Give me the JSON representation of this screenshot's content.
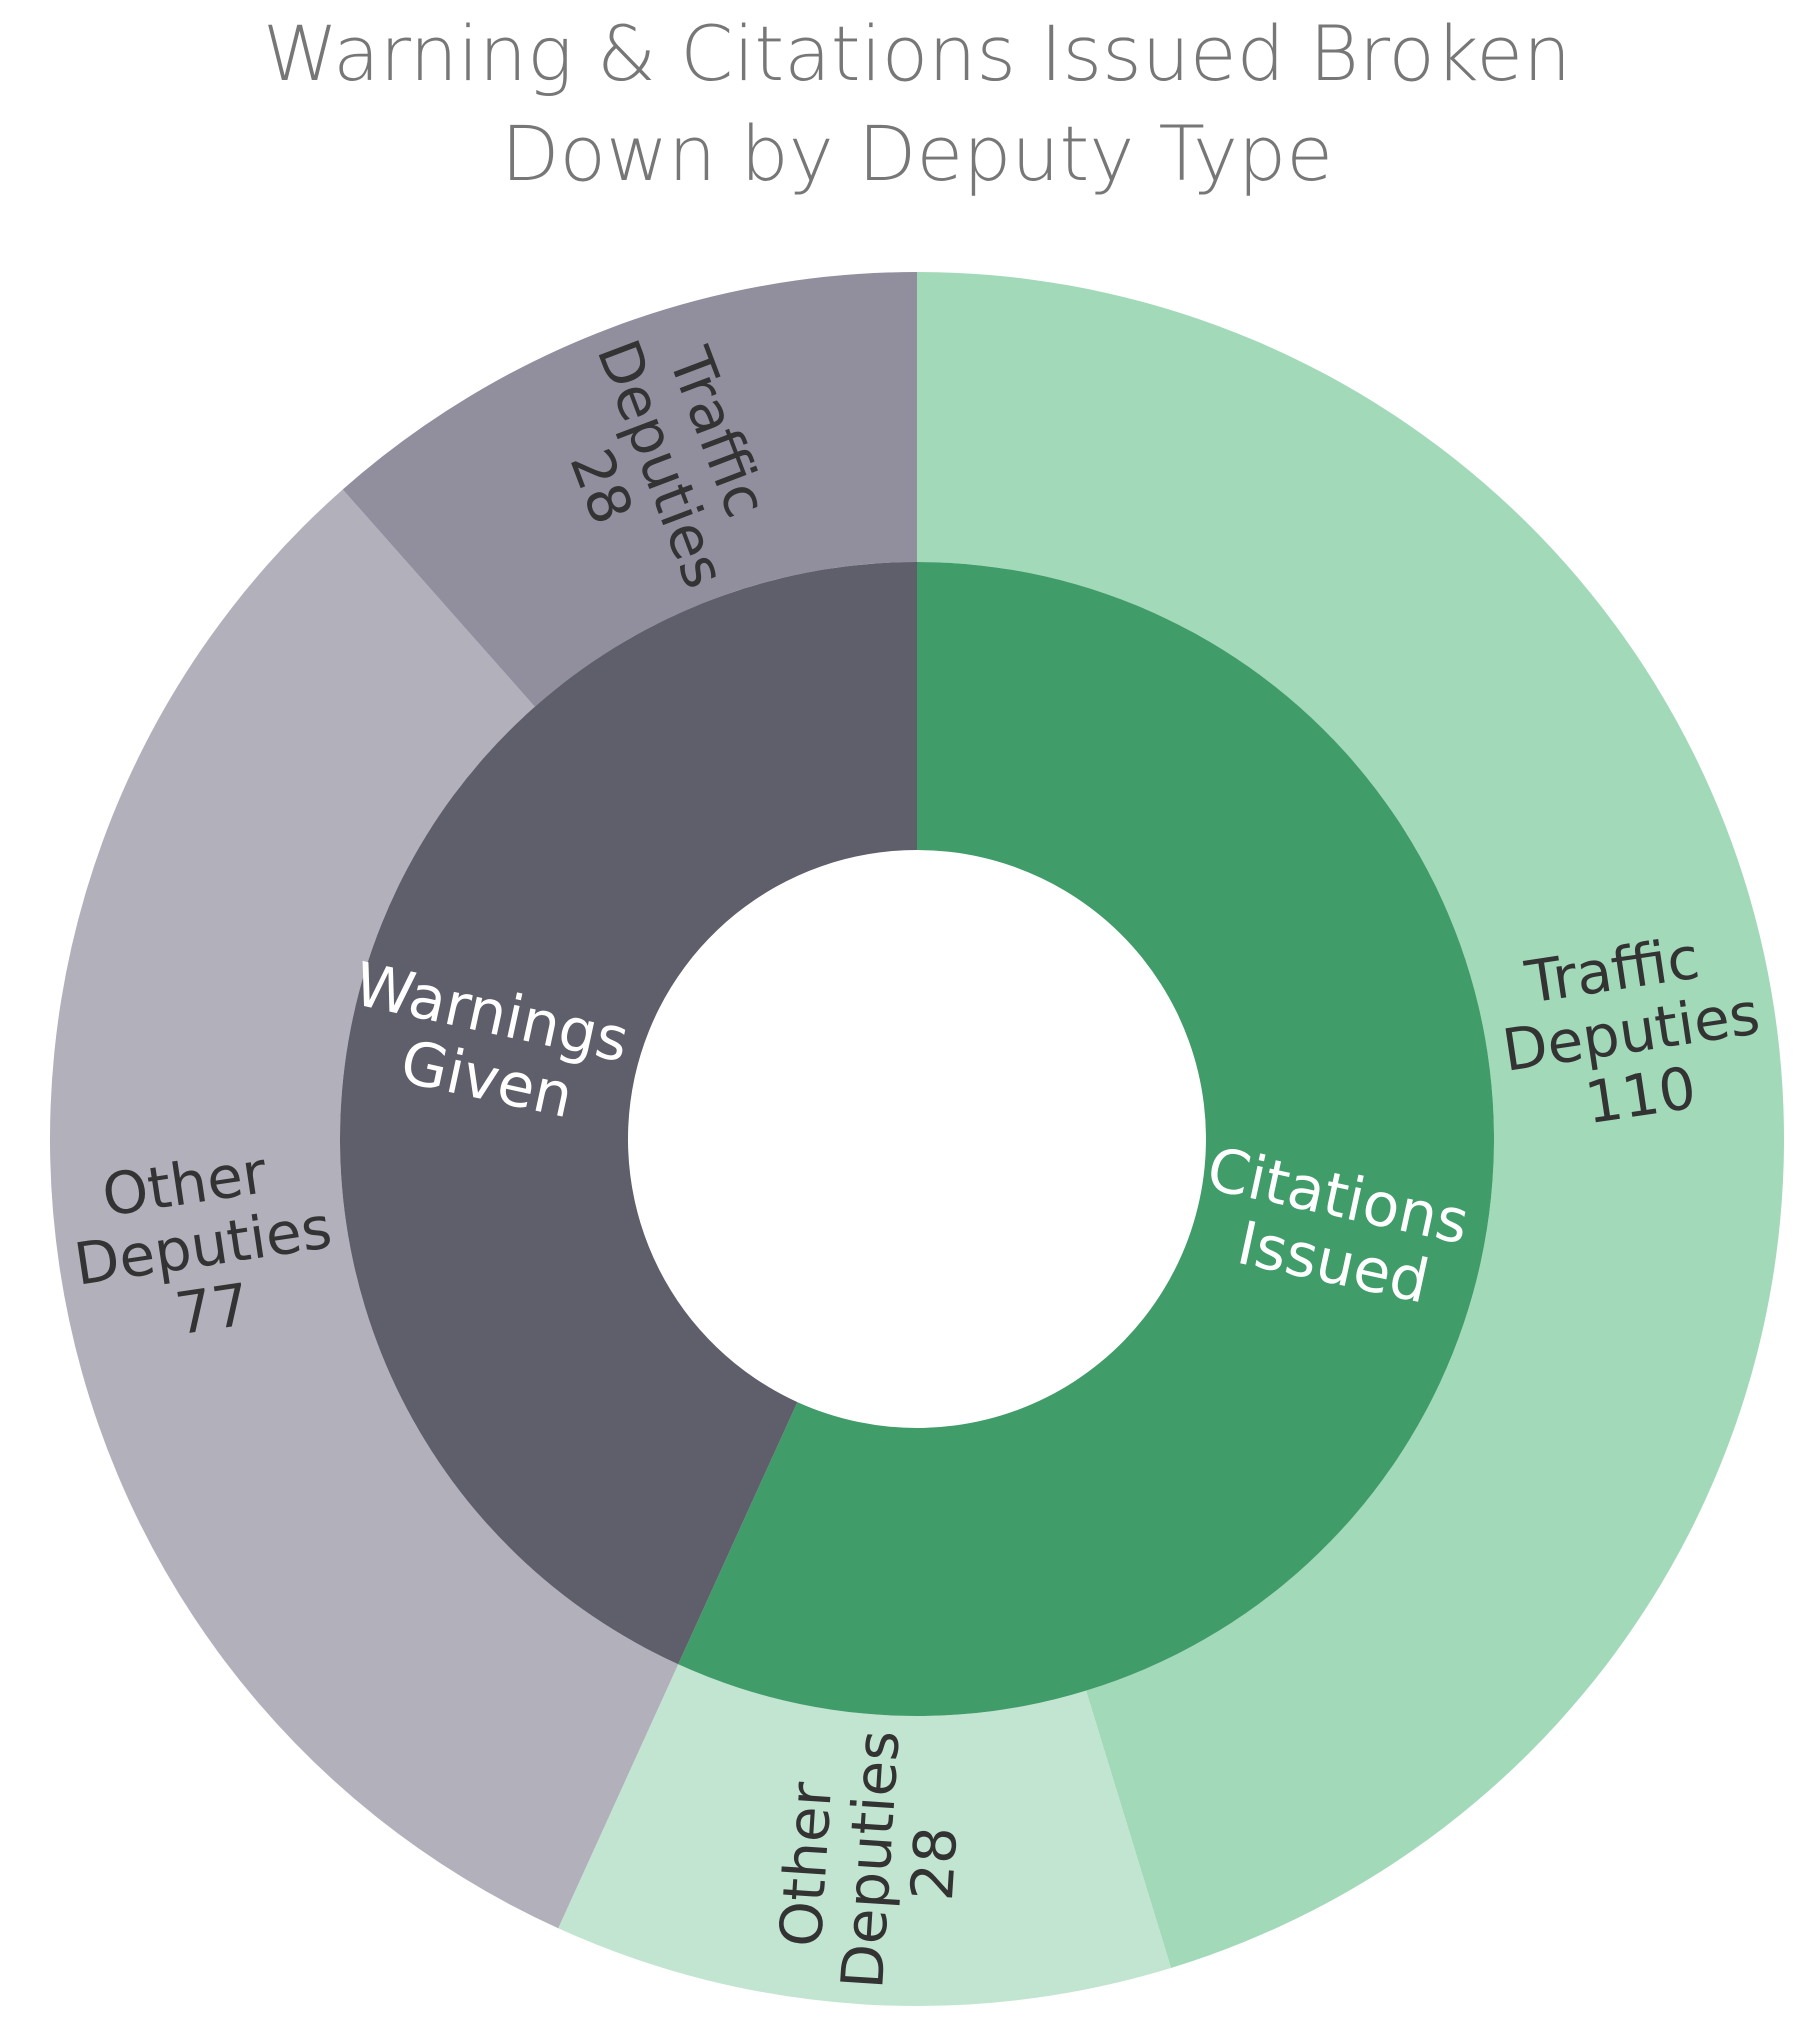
{
  "chart_data": {
    "type": "sunburst",
    "title": [
      "Warning & Citations Issued Broken",
      "Down by Deputy Type"
    ],
    "groups": [
      {
        "name": "Citations Issued",
        "color": "#409c69",
        "children": [
          {
            "name": "Traffic Deputies",
            "value": 110,
            "color": "#a2d9b9"
          },
          {
            "name": "Other Deputies",
            "value": 28,
            "color": "#c2e5d1"
          }
        ]
      },
      {
        "name": "Warnings Given",
        "color": "#5f5e6b",
        "children": [
          {
            "name": "Other Deputies",
            "value": 77,
            "color": "#b1b0bb"
          },
          {
            "name": "Traffic Deputies",
            "value": 28,
            "color": "#918f9e"
          }
        ]
      }
    ]
  }
}
